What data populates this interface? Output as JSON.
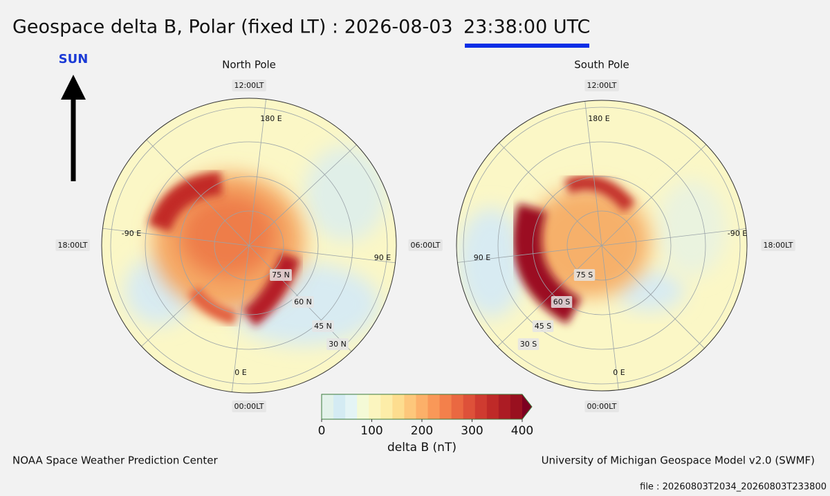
{
  "title": "Geospace delta B, Polar (fixed LT) : 2026-08-03",
  "time": "23:38:00 UTC",
  "sun_label": "SUN",
  "north": {
    "title": "North Pole",
    "lt_labels": [
      "12:00LT",
      "18:00LT",
      "06:00LT",
      "00:00LT"
    ],
    "lon_labels": [
      "180 E",
      "-90 E",
      "90 E",
      "0 E"
    ],
    "lat_labels": [
      "75 N",
      "60 N",
      "45 N",
      "30 N"
    ]
  },
  "south": {
    "title": "South Pole",
    "lt_labels": [
      "12:00LT",
      "18:00LT",
      "00:00LT"
    ],
    "lon_labels": [
      "180 E",
      "-90 E",
      "90 E",
      "0 E"
    ],
    "lat_labels": [
      "75 S",
      "60 S",
      "45 S",
      "30 S"
    ]
  },
  "colorbar": {
    "label": "delta B (nT)",
    "lim": [
      0,
      400
    ],
    "ticks": [
      0,
      100,
      200,
      300,
      400
    ],
    "colors": [
      "#e3f2ea",
      "#d4ebf3",
      "#e4f4f5",
      "#f4fad6",
      "#fbf5bf",
      "#fdeda8",
      "#fddd8f",
      "#fdc77b",
      "#fcb069",
      "#f99858",
      "#f3804b",
      "#ea6841",
      "#de5139",
      "#cf3b30",
      "#bf2a28",
      "#ac1c24",
      "#99101f"
    ],
    "over_color": "#7c0020"
  },
  "footer_left": "NOAA Space Weather Prediction Center",
  "footer_right": "University of Michigan Geospace Model v2.0 (SWMF)",
  "file": "file : 20260803T2034_20260803T233800"
}
